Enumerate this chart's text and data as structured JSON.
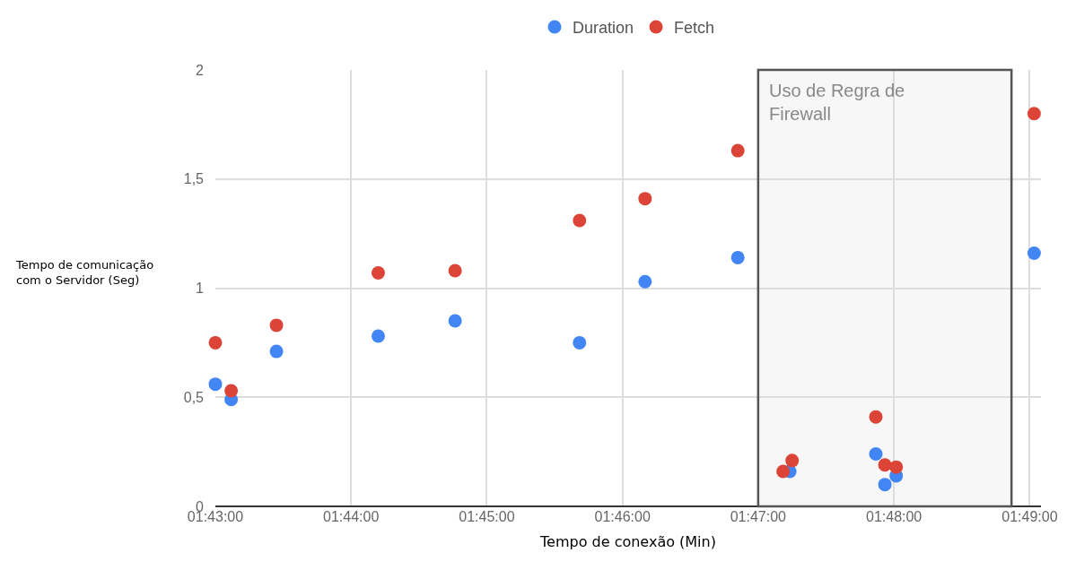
{
  "chart_data": {
    "type": "scatter",
    "xlabel": "Tempo de conexão (Min)",
    "ylabel": "Tempo de comunicação\ncom o Servidor (Seg)",
    "series": [
      {
        "name": "Duration",
        "color": "#4285f4",
        "x": [
          1.71667,
          1.71861,
          1.72417,
          1.73667,
          1.74611,
          1.76139,
          1.76944,
          1.78083,
          1.78722,
          1.79778,
          1.79889,
          1.80028,
          1.81722
        ],
        "values": [
          0.56,
          0.49,
          0.71,
          0.78,
          0.85,
          0.75,
          1.03,
          1.14,
          0.16,
          0.24,
          0.1,
          0.14,
          1.16
        ]
      },
      {
        "name": "Fetch",
        "color": "#db4437",
        "x": [
          1.71667,
          1.71861,
          1.72417,
          1.73667,
          1.74611,
          1.76139,
          1.76944,
          1.78083,
          1.78639,
          1.7875,
          1.79778,
          1.79889,
          1.80028,
          1.81722
        ],
        "values": [
          0.75,
          0.53,
          0.83,
          1.07,
          1.08,
          1.31,
          1.41,
          1.63,
          0.16,
          0.21,
          0.41,
          0.19,
          0.18,
          1.8
        ]
      }
    ],
    "xlim": [
      1.71667,
      1.81806
    ],
    "xticks": [
      {
        "value": 1.71667,
        "label": "01:43:00"
      },
      {
        "value": 1.73333,
        "label": "01:44:00"
      },
      {
        "value": 1.75,
        "label": "01:45:00"
      },
      {
        "value": 1.76667,
        "label": "01:46:00"
      },
      {
        "value": 1.78333,
        "label": "01:47:00"
      },
      {
        "value": 1.8,
        "label": "01:48:00"
      },
      {
        "value": 1.81667,
        "label": "01:49:00"
      }
    ],
    "ylim": [
      0,
      2
    ],
    "yticks": [
      0,
      {
        "value": 0.5,
        "label": "0,5"
      },
      1,
      {
        "value": 1.5,
        "label": "1,5"
      },
      2
    ],
    "bands": [
      {
        "axis": "x",
        "from": 1.78333,
        "to": 1.81444,
        "label": "Uso de Regra de Firewall",
        "color": "#555555"
      }
    ],
    "grid": true,
    "legend": "top",
    "marker": "circle"
  }
}
